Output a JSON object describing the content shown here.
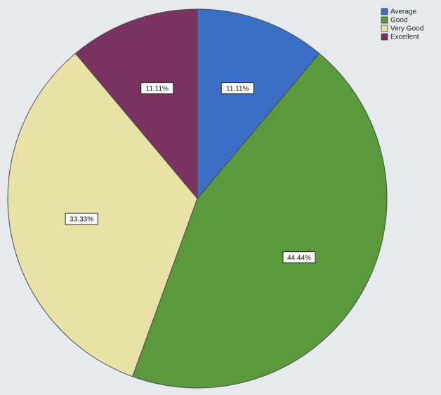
{
  "chart_data": {
    "type": "pie",
    "categories": [
      "Average",
      "Good",
      "Very Good",
      "Excellent"
    ],
    "values": [
      11.11,
      44.44,
      33.33,
      11.11
    ],
    "value_labels": [
      "11.11%",
      "44.44%",
      "33.33%",
      "11.11%"
    ],
    "colors": [
      "#3b6fc6",
      "#5b9a3c",
      "#e9e2a6",
      "#7b3462"
    ],
    "legend": "top-right"
  }
}
